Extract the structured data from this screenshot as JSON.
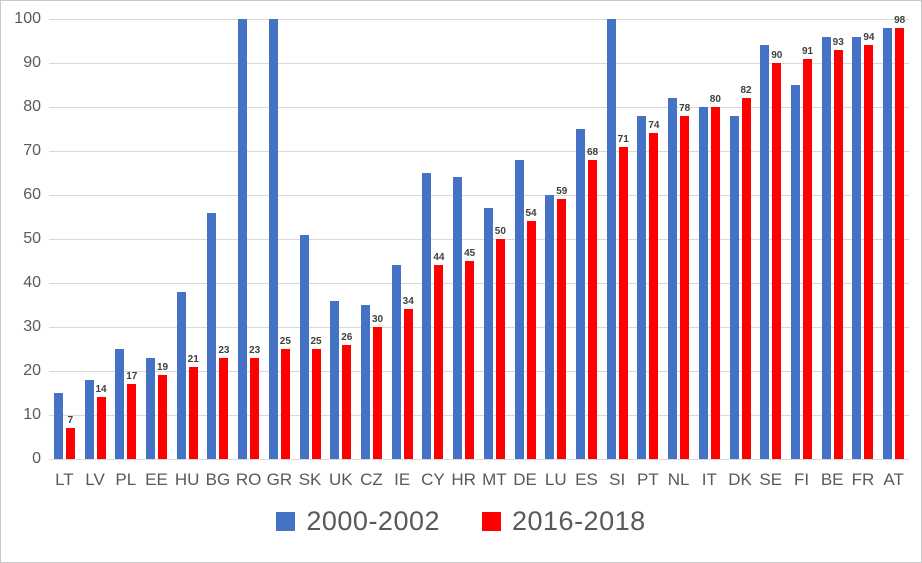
{
  "chart_data": {
    "type": "bar",
    "title": "",
    "xlabel": "",
    "ylabel": "",
    "categories": [
      "LT",
      "LV",
      "PL",
      "EE",
      "HU",
      "BG",
      "RO",
      "GR",
      "SK",
      "UK",
      "CZ",
      "IE",
      "CY",
      "HR",
      "MT",
      "DE",
      "LU",
      "ES",
      "SI",
      "PT",
      "NL",
      "IT",
      "DK",
      "SE",
      "FI",
      "BE",
      "FR",
      "AT"
    ],
    "series": [
      {
        "name": "2000-2002",
        "color": "#4472C4",
        "data_labels": false,
        "values": [
          15,
          18,
          25,
          23,
          38,
          56,
          100,
          100,
          51,
          36,
          35,
          44,
          65,
          64,
          57,
          68,
          60,
          75,
          100,
          78,
          82,
          80,
          78,
          94,
          85,
          96,
          96,
          98
        ]
      },
      {
        "name": "2016-2018",
        "color": "#FF0000",
        "data_labels": true,
        "values": [
          7,
          14,
          17,
          19,
          21,
          23,
          23,
          25,
          25,
          26,
          30,
          34,
          44,
          45,
          50,
          54,
          59,
          68,
          71,
          74,
          78,
          80,
          82,
          90,
          91,
          93,
          94,
          98
        ]
      }
    ],
    "ylim": [
      0,
      100
    ],
    "yticks": [
      0,
      10,
      20,
      30,
      40,
      50,
      60,
      70,
      80,
      90,
      100
    ],
    "grid": true,
    "legend_position": "bottom"
  },
  "legend": {
    "items": [
      {
        "label": "2000-2002",
        "color": "#4472C4"
      },
      {
        "label": "2016-2018",
        "color": "#FF0000"
      }
    ]
  },
  "colors": {
    "series_blue": "#4472C4",
    "series_red": "#FF0000",
    "gridline": "#d9d9d9",
    "axis_text": "#595959",
    "data_label_text": "#3f3f3f"
  }
}
